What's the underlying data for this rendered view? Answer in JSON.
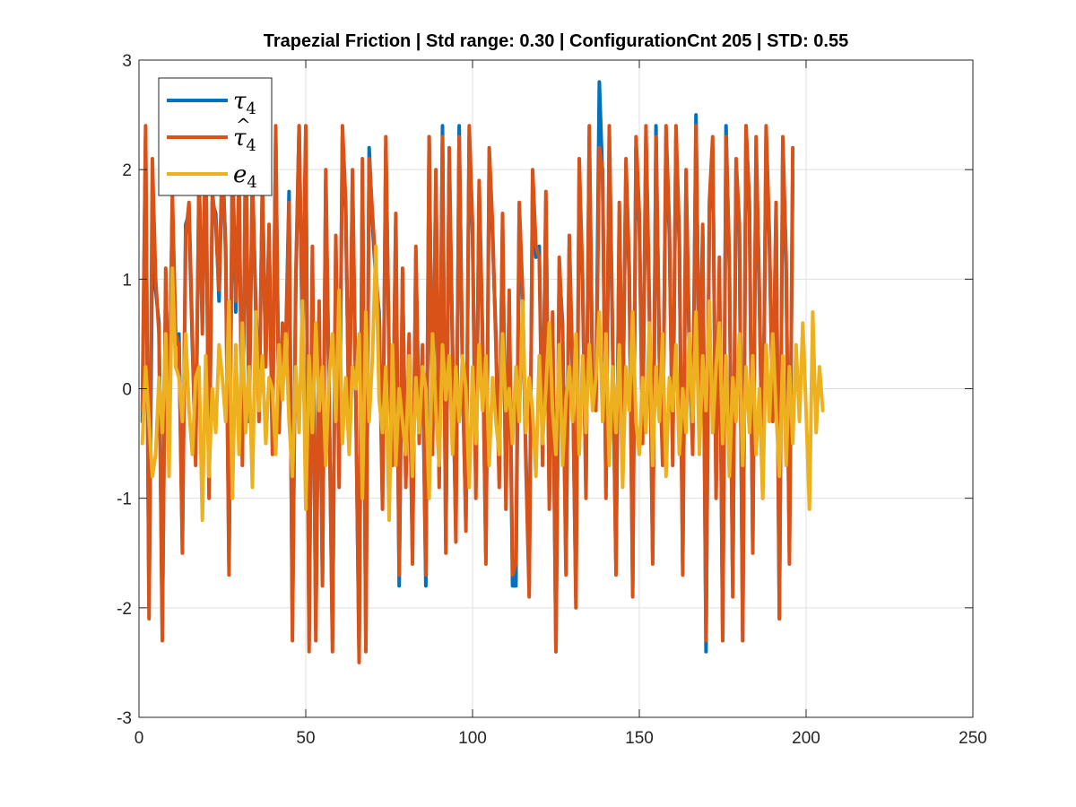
{
  "chart_data": {
    "type": "line",
    "title": "Trapezial Friction | Std range: 0.30 | ConfigurationCnt 205 | STD: 0.55",
    "xlabel": "",
    "ylabel": "",
    "xlim": [
      0,
      250
    ],
    "ylim": [
      -3,
      3
    ],
    "xticks": [
      0,
      50,
      100,
      150,
      200,
      250
    ],
    "yticks": [
      -3,
      -2,
      -1,
      0,
      1,
      2,
      3
    ],
    "xtick_labels": [
      "0",
      "50",
      "100",
      "150",
      "200",
      "250"
    ],
    "ytick_labels": [
      "-3",
      "-2",
      "-1",
      "0",
      "1",
      "2",
      "3"
    ],
    "grid": true,
    "legend_position": "top-left",
    "x_start": 1,
    "series": [
      {
        "name": "τ4",
        "legend_base": "τ",
        "legend_sub": "4",
        "legend_hat": false,
        "color": "#0072BD",
        "values": [
          -0.3,
          2.3,
          -2.0,
          1.3,
          0.9,
          0.6,
          -2.2,
          1.0,
          -0.4,
          1.7,
          0.4,
          0.5,
          -1.4,
          1.5,
          1.6,
          0.4,
          -0.6,
          1.9,
          0.6,
          2.3,
          -0.9,
          1.7,
          1.6,
          0.8,
          2.1,
          1.3,
          -1.6,
          2.1,
          0.7,
          1.8,
          -0.6,
          2.2,
          -0.3,
          1.9,
          0.8,
          -0.2,
          1.8,
          0.3,
          1.4,
          -0.5,
          2.3,
          -0.3,
          0.5,
          0.4,
          1.8,
          -2.2,
          0.9,
          2.4,
          0.4,
          2.3,
          -2.3,
          1.2,
          -2.2,
          0.7,
          -1.7,
          1.9,
          -0.1,
          -2.3,
          1.3,
          -0.8,
          2.3,
          1.6,
          -0.4,
          1.9,
          -0.1,
          -2.4,
          2.0,
          -2.3,
          2.2,
          1.5,
          1.0,
          0.7,
          -1.0,
          2.2,
          0.3,
          -0.6,
          1.5,
          -1.8,
          1.0,
          -0.8,
          0.4,
          -1.5,
          1.2,
          -0.4,
          0.3,
          -1.8,
          2.3,
          -0.5,
          1.9,
          -0.8,
          2.4,
          -1.4,
          2.1,
          0.3,
          -1.3,
          2.4,
          0.1,
          -1.2,
          2.3,
          1.4,
          -0.9,
          1.8,
          0.4,
          -1.5,
          2.1,
          1.4,
          0.5,
          -0.8,
          1.5,
          -1.0,
          0.8,
          -1.8,
          -1.8,
          1.6,
          0.8,
          -0.6,
          -1.8,
          1.9,
          1.2,
          1.3,
          -0.6,
          1.7,
          -1.0,
          0.6,
          -2.4,
          1.1,
          0.6,
          -1.6,
          1.3,
          0.1,
          -1.9,
          2.0,
          0.9,
          -0.9,
          2.3,
          0.0,
          -0.1,
          2.8,
          1.9,
          -0.9,
          2.3,
          0.4,
          -1.6,
          1.6,
          -0.3,
          2.0,
          1.0,
          -1.8,
          2.2,
          1.5,
          -0.4,
          2.3,
          0.7,
          -1.5,
          2.4,
          0.3,
          -0.6,
          2.3,
          1.4,
          -0.6,
          2.3,
          1.3,
          -1.6,
          1.9,
          0.3,
          -0.5,
          2.5,
          -0.1,
          1.4,
          -2.4,
          1.6,
          2.2,
          -0.9,
          1.1,
          -2.3,
          2.4,
          1.1,
          -1.8,
          2.0,
          1.4,
          -2.3,
          2.4,
          1.6,
          -1.4,
          2.2,
          0.8,
          -0.9,
          2.3,
          1.3,
          -0.2,
          1.6,
          -2.1,
          2.2,
          1.1,
          -1.5,
          2.0
        ],
        "note": "reading-approximate"
      },
      {
        "name": "τ̂4",
        "legend_base": "τ",
        "legend_sub": "4",
        "legend_hat": true,
        "color": "#D95319",
        "values": [
          -0.2,
          2.4,
          -2.1,
          2.1,
          1.0,
          0.5,
          -2.3,
          1.1,
          -0.5,
          1.8,
          0.5,
          0.4,
          -1.5,
          1.4,
          1.7,
          0.5,
          -0.7,
          2.0,
          0.5,
          2.4,
          -1.0,
          1.8,
          1.5,
          0.9,
          2.2,
          1.2,
          -1.7,
          2.2,
          0.8,
          1.9,
          -0.7,
          2.3,
          -0.2,
          2.0,
          0.7,
          -0.3,
          1.9,
          0.2,
          1.5,
          -0.6,
          2.4,
          -0.4,
          0.6,
          0.3,
          1.7,
          -2.3,
          1.0,
          2.4,
          0.5,
          2.4,
          -2.4,
          1.3,
          -2.3,
          0.8,
          -1.8,
          2.0,
          0.0,
          -2.4,
          1.4,
          -0.9,
          2.4,
          1.7,
          -0.5,
          2.0,
          0.0,
          -2.5,
          2.1,
          -2.4,
          2.1,
          1.6,
          1.1,
          0.6,
          -1.1,
          2.3,
          0.2,
          -0.7,
          1.6,
          -1.7,
          1.1,
          -0.9,
          0.5,
          -1.6,
          1.3,
          -0.5,
          0.4,
          -1.7,
          2.3,
          -0.6,
          2.0,
          -0.9,
          2.3,
          -1.5,
          2.2,
          0.4,
          -1.4,
          2.3,
          0.2,
          -1.3,
          2.4,
          1.5,
          -1.0,
          1.9,
          0.5,
          -1.6,
          2.2,
          1.5,
          0.4,
          -0.9,
          1.6,
          -1.1,
          0.9,
          -1.7,
          -1.6,
          1.7,
          0.9,
          -0.7,
          -1.9,
          2.0,
          1.3,
          1.2,
          -0.7,
          1.8,
          -1.1,
          0.7,
          -2.4,
          1.2,
          0.5,
          -1.7,
          1.4,
          0.2,
          -2.0,
          2.1,
          1.0,
          -1.0,
          2.4,
          0.1,
          -0.2,
          2.2,
          2.0,
          -1.0,
          2.4,
          0.5,
          -1.7,
          1.7,
          -0.4,
          2.1,
          1.1,
          -1.9,
          2.3,
          1.6,
          -0.5,
          2.4,
          0.8,
          -1.6,
          2.3,
          0.4,
          -0.7,
          2.4,
          1.5,
          -0.7,
          2.4,
          1.4,
          -1.7,
          2.0,
          0.4,
          -0.6,
          2.4,
          0.0,
          1.5,
          -2.3,
          1.7,
          2.3,
          -1.0,
          1.2,
          -2.3,
          2.3,
          1.2,
          -1.9,
          2.1,
          1.5,
          -2.3,
          2.4,
          1.7,
          -1.5,
          2.3,
          0.9,
          -1.0,
          2.4,
          1.4,
          -0.3,
          1.7,
          -2.1,
          2.3,
          1.2,
          -1.6,
          2.2
        ],
        "note": "reading-approximate"
      },
      {
        "name": "e4",
        "legend_base": "e",
        "legend_sub": "4",
        "legend_hat": false,
        "color": "#EDB120",
        "values": [
          -0.5,
          0.2,
          -0.3,
          -0.8,
          -0.6,
          0.1,
          -0.4,
          0.5,
          -0.8,
          1.1,
          0.2,
          0.1,
          -0.3,
          0.5,
          -0.2,
          -0.6,
          0.1,
          0.2,
          -1.2,
          0.3,
          -0.8,
          0.0,
          -0.4,
          0.4,
          0.1,
          -0.3,
          0.8,
          -1.0,
          0.4,
          -0.6,
          0.6,
          -0.4,
          0.2,
          -0.9,
          0.7,
          -0.2,
          0.3,
          -0.5,
          0.1,
          0.0,
          -0.6,
          0.4,
          -0.1,
          0.5,
          -0.3,
          -0.8,
          0.2,
          -0.4,
          0.8,
          -1.1,
          0.3,
          -0.4,
          0.6,
          -0.2,
          0.2,
          -0.7,
          0.1,
          0.5,
          -0.3,
          0.9,
          -0.5,
          0.1,
          -0.6,
          0.2,
          0.0,
          0.5,
          -1.0,
          0.7,
          -0.3,
          0.3,
          1.3,
          -0.1,
          -0.4,
          0.2,
          -1.2,
          0.4,
          -0.7,
          0.0,
          -0.3,
          -0.6,
          0.3,
          -0.8,
          0.1,
          -0.4,
          0.2,
          0.0,
          -1.0,
          0.5,
          -0.2,
          -0.7,
          0.4,
          -0.1,
          0.3,
          -0.6,
          0.2,
          -0.3,
          0.3,
          0.0,
          -0.9,
          0.2,
          -0.5,
          0.4,
          -0.2,
          0.3,
          -0.7,
          0.1,
          -0.3,
          -0.6,
          0.5,
          -0.2,
          0.0,
          -0.5,
          0.2,
          -0.3,
          0.8,
          -0.4,
          0.1,
          -0.2,
          -0.8,
          0.3,
          -0.5,
          0.0,
          0.6,
          -0.2,
          -0.6,
          0.4,
          -0.7,
          -0.1,
          0.2,
          -0.3,
          0.5,
          -0.6,
          0.3,
          -0.4,
          0.4,
          -0.2,
          0.1,
          0.7,
          -0.3,
          0.5,
          -0.7,
          0.2,
          -0.4,
          0.4,
          -0.9,
          0.2,
          -0.2,
          0.7,
          -0.3,
          -0.6,
          0.1,
          -0.4,
          0.6,
          -0.7,
          0.2,
          -0.3,
          0.5,
          -0.8,
          0.1,
          -0.2,
          0.4,
          -0.6,
          0.0,
          -0.4,
          0.5,
          -0.3,
          0.7,
          -0.6,
          0.3,
          -0.2,
          0.8,
          -0.4,
          0.2,
          0.6,
          -0.5,
          0.3,
          -0.8,
          0.1,
          -0.3,
          0.5,
          -0.7,
          0.2,
          -0.4,
          0.3,
          -0.6,
          0.0,
          -1.0,
          0.4,
          -0.3,
          0.5,
          -0.2,
          -0.8,
          0.3,
          -0.7,
          0.2,
          -0.5,
          0.4,
          -0.3,
          0.6,
          -0.2,
          -1.1,
          0.7,
          -0.4,
          0.2,
          -0.2
        ],
        "note": "reading-approximate"
      }
    ]
  }
}
